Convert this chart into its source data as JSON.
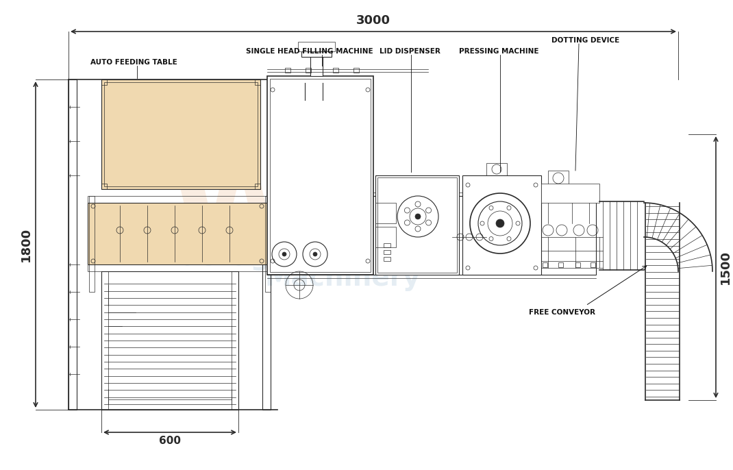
{
  "bg_color": "#ffffff",
  "mc": "#2a2a2a",
  "fc_tan": "#f0d9b0",
  "fc_white": "#ffffff",
  "labels": {
    "dim_3000": "3000",
    "dim_1800": "1800",
    "dim_600": "600",
    "dim_1500": "1500",
    "auto_feeding": "AUTO FEEDING TABLE",
    "filling": "SINGLE HEAD FILLING MACHINE",
    "lid": "LID DISPENSER",
    "pressing": "PRESSING MACHINE",
    "dotting": "DOTTING DEVICE",
    "conveyor": "FREE CONVEYOR"
  },
  "figsize": [
    10.7,
    6.86
  ],
  "dpi": 100,
  "xlim": [
    0,
    1070
  ],
  "ylim": [
    0,
    686
  ]
}
